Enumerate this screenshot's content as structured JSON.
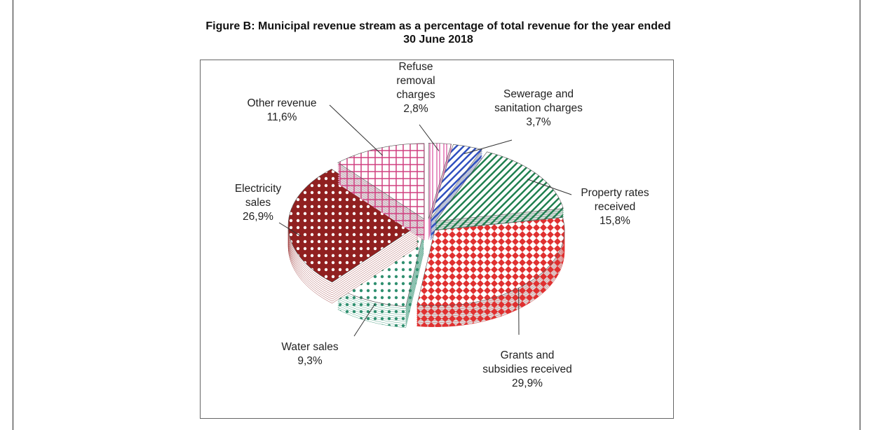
{
  "chart_data": {
    "type": "pie",
    "title": "Figure B: Municipal revenue stream as a percentage of total revenue for the year ended 30 June 2018",
    "categories": [
      "Refuse removal charges",
      "Sewerage and sanitation charges",
      "Property rates received",
      "Grants and subsidies received",
      "Water sales",
      "Electricity sales",
      "Other revenue"
    ],
    "values": [
      2.8,
      3.7,
      15.8,
      29.9,
      9.3,
      26.9,
      11.6
    ],
    "value_labels": [
      "2,8%",
      "3,7%",
      "15,8%",
      "29,9%",
      "9,3%",
      "26,9%",
      "11,6%"
    ],
    "colors": [
      "#e070b0",
      "#3050c0",
      "#208050",
      "#e03030",
      "#309070",
      "#902020",
      "#d04080"
    ]
  }
}
